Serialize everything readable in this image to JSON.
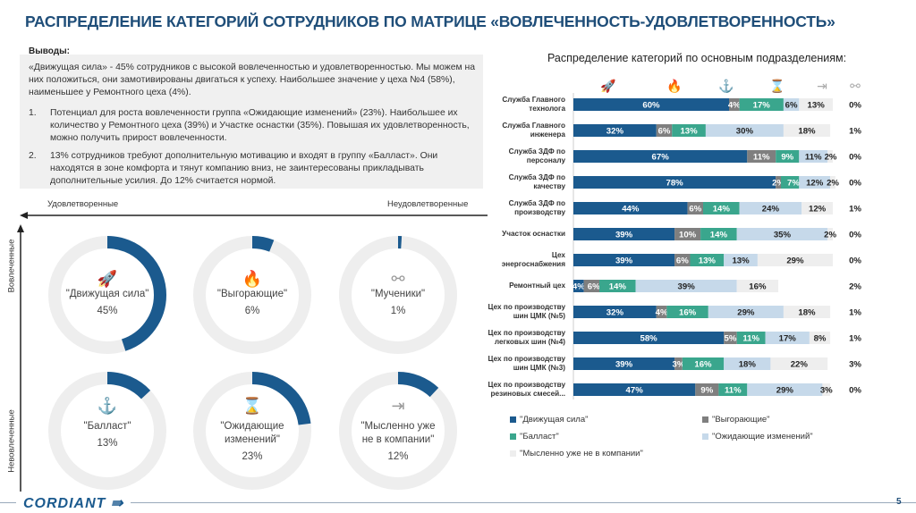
{
  "title": "РАСПРЕДЕЛЕНИЕ КАТЕГОРИЙ СОТРУДНИКОВ ПО МАТРИЦЕ «ВОВЛЕЧЕННОСТЬ-УДОВЛЕТВОРЕННОСТЬ»",
  "conclusions": {
    "heading": "Выводы:",
    "intro": "«Движущая сила» - 45% сотрудников с высокой вовлеченностью и удовлетворенностью. Мы можем на них положиться, они замотивированы двигаться к успеху. Наибольшее значение у цеха №4 (58%), наименьшее у Ремонтного цеха (4%).",
    "items": [
      {
        "num": "1.",
        "text": "Потенциал для роста вовлеченности группа «Ожидающие изменений» (23%). Наибольшее их количество у Ремонтного цеха (39%) и Участке оснастки (35%). Повышая их удовлетворенность, можно получить прирост вовлеченности."
      },
      {
        "num": "2.",
        "text": "13% сотрудников требуют дополнительную мотивацию и входят в группу «Балласт». Они находятся в зоне комфорта и тянут компанию вниз, не заинтересованы прикладывать дополнительные усилия. До 12%  считается нормой."
      }
    ]
  },
  "matrix": {
    "x_left": "Удовлетворенные",
    "x_right": "Неудовлетворенные",
    "y_top": "Вовлеченные",
    "y_bottom": "Невовлеченные",
    "accent": "#1b5a8e",
    "track": "#eeeeee",
    "cells": [
      {
        "label": "\"Движущая сила\"",
        "value_text": "45%",
        "value": 45,
        "icon": "rocket-icon"
      },
      {
        "label": "\"Выгорающие\"",
        "value_text": "6%",
        "value": 6,
        "icon": "flame-icon"
      },
      {
        "label": "\"Мученики\"",
        "value_text": "1%",
        "value": 1,
        "icon": "handcuffs-icon"
      },
      {
        "label": "\"Балласт\"",
        "value_text": "13%",
        "value": 13,
        "icon": "anchor-icon"
      },
      {
        "label": "\"Ожидающие изменений\"",
        "value_text": "23%",
        "value": 23,
        "icon": "hourglass-icon"
      },
      {
        "label": "\"Мысленно уже не в компании\"",
        "value_text": "12%",
        "value": 12,
        "icon": "exit-door-icon"
      }
    ]
  },
  "chart_data": {
    "type": "bar",
    "orientation": "horizontal-stacked-100",
    "title": "Распределение категорий по основным подразделениям:",
    "xlim": [
      0,
      100
    ],
    "categories": [
      "Служба Главного технолога",
      "Служба Главного инженера",
      "Служба ЗДФ по персоналу",
      "Служба ЗДФ по качеству",
      "Служба ЗДФ по производству",
      "Участок оснастки",
      "Цех энергоснабжения",
      "Ремонтный цех",
      "Цех по производству шин ЦМК (№5)",
      "Цех по производству легковых шин (№4)",
      "Цех по производству шин ЦМК (№3)",
      "Цех по производству резиновых смесей..."
    ],
    "category_display": [
      "Служба Главного\nтехнолога",
      "Служба Главного\nинженера",
      "Служба ЗДФ по\nперсоналу",
      "Служба ЗДФ по\nкачеству",
      "Служба ЗДФ по\nпроизводству",
      "Участок оснастки",
      "Цех\nэнергоснабжения",
      "Ремонтный цех",
      "Цех по производству\nшин ЦМК (№5)",
      "Цех по производству\nлегковых шин (№4)",
      "Цех по производству\nшин ЦМК (№3)",
      "Цех по производству\nрезиновых смесей..."
    ],
    "series": [
      {
        "name": "\"Движущая сила\"",
        "color": "#1b5a8e",
        "icon": "rocket-icon",
        "values": [
          60,
          32,
          67,
          78,
          44,
          39,
          39,
          4,
          32,
          58,
          39,
          47
        ]
      },
      {
        "name": "\"Выгорающие\"",
        "color": "#7f7f7f",
        "icon": "flame-icon",
        "values": [
          4,
          6,
          11,
          2,
          6,
          10,
          6,
          6,
          4,
          5,
          3,
          9
        ]
      },
      {
        "name": "\"Балласт\"",
        "color": "#3aa68d",
        "icon": "anchor-icon",
        "values": [
          17,
          13,
          9,
          7,
          14,
          14,
          13,
          14,
          16,
          11,
          16,
          11
        ]
      },
      {
        "name": "\"Ожидающие изменений\"",
        "color": "#c6d9ea",
        "icon": "hourglass-icon",
        "values": [
          6,
          30,
          11,
          12,
          24,
          35,
          13,
          39,
          29,
          17,
          18,
          29
        ]
      },
      {
        "name": "\"Мысленно уже не в компании\"",
        "color": "#eeeeee",
        "icon": "exit-door-icon",
        "values": [
          13,
          18,
          2,
          2,
          12,
          2,
          29,
          16,
          18,
          8,
          22,
          3
        ]
      },
      {
        "icon": "handcuffs-icon",
        "values": [
          0,
          1,
          0,
          0,
          1,
          0,
          0,
          2,
          1,
          1,
          3,
          0
        ]
      }
    ],
    "legend": "bottom"
  },
  "footer": {
    "logo": "CORDIANT",
    "page": "5"
  }
}
